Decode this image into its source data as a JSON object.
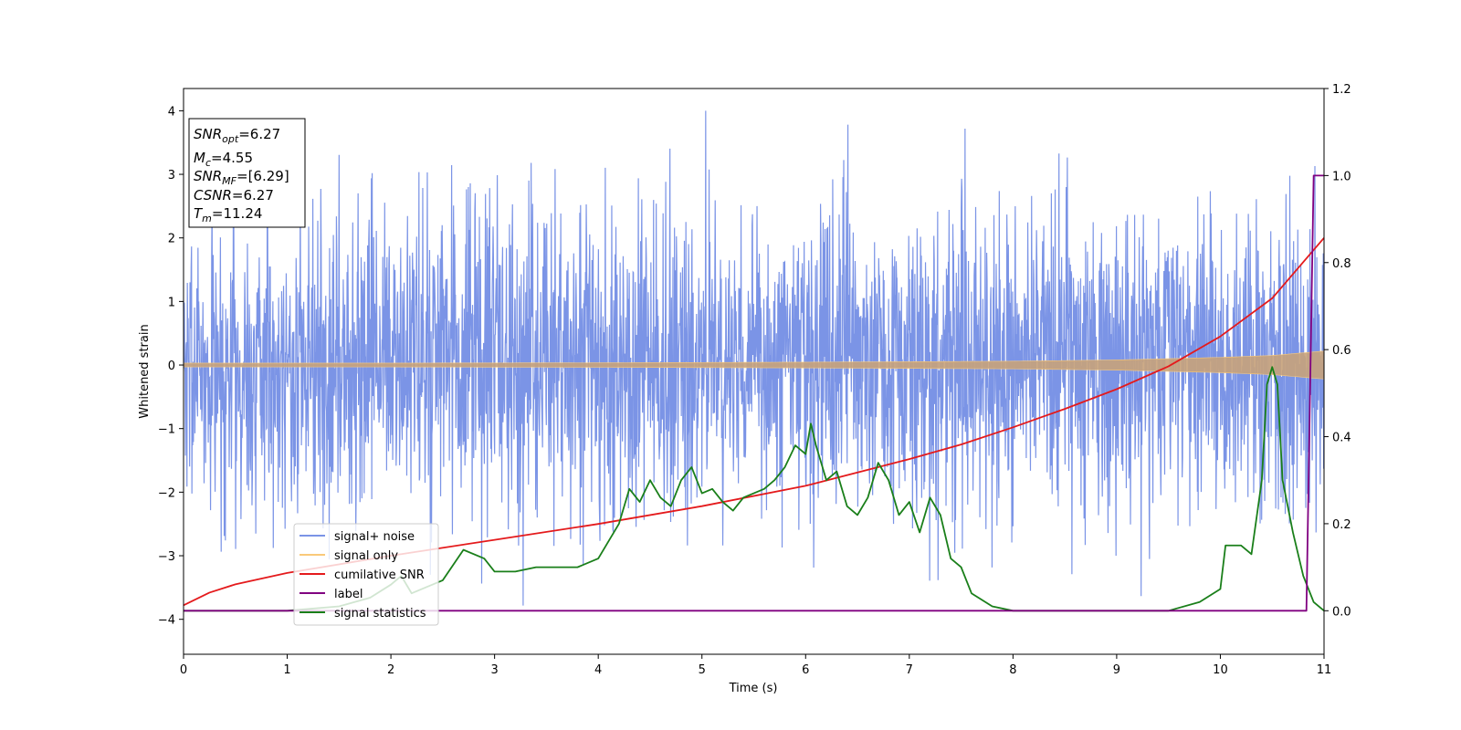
{
  "chart_data": {
    "type": "line",
    "xlabel": "Time (s)",
    "ylabel": "Whitened strain",
    "xlim": [
      0,
      11
    ],
    "ylim_left": [
      -4.55,
      4.35
    ],
    "ylim_right": [
      -0.1,
      1.2
    ],
    "x_ticks": [
      "0",
      "1",
      "2",
      "3",
      "4",
      "5",
      "6",
      "7",
      "8",
      "9",
      "10",
      "11"
    ],
    "y_left_ticks": [
      "4",
      "3",
      "2",
      "1",
      "0",
      "−1",
      "−2",
      "−3",
      "−4"
    ],
    "y_right_ticks": [
      "1.2",
      "1.0",
      "0.8",
      "0.6",
      "0.4",
      "0.2",
      "0.0"
    ],
    "annotation": {
      "lines": [
        {
          "main": "SNR",
          "sub": "opt",
          "rest": "=6.27"
        },
        {
          "main": "M",
          "sub": "c",
          "rest": "=4.55"
        },
        {
          "main": "SNR",
          "sub": "MF",
          "rest": "=[6.29]"
        },
        {
          "main": "CSNR",
          "sub": "",
          "rest": "=6.27"
        },
        {
          "main": "T",
          "sub": "m",
          "rest": "=11.24"
        }
      ]
    },
    "legend": {
      "placement": "lower-left",
      "entries": [
        {
          "label": "signal+ noise",
          "color": "#7b94e6"
        },
        {
          "label": "signal only",
          "color": "#f9c97a"
        },
        {
          "label": "cumilative SNR",
          "color": "#e41a1c"
        },
        {
          "label": "label",
          "color": "#800080"
        },
        {
          "label": "signal statistics",
          "color": "#1a7f1a"
        }
      ]
    },
    "series": [
      {
        "key": "noise",
        "axis": "left",
        "color": "#7b94e6",
        "approx_amplitude": 1.2,
        "note_range": [
          -3.9,
          4.0
        ]
      },
      {
        "key": "signal",
        "axis": "left",
        "color": "#f9c97a",
        "envelope": {
          "x": [
            0,
            2,
            4,
            6,
            8,
            9,
            10,
            10.5,
            11
          ],
          "amp": [
            0.03,
            0.03,
            0.035,
            0.045,
            0.06,
            0.08,
            0.12,
            0.15,
            0.22
          ]
        }
      },
      {
        "key": "csnr",
        "axis": "left",
        "color": "#e41a1c",
        "x": [
          0,
          0.25,
          0.5,
          1,
          2,
          3,
          4,
          5,
          6,
          7,
          7.5,
          8,
          8.5,
          9,
          9.5,
          10,
          10.5,
          11
        ],
        "y": [
          -3.78,
          -3.58,
          -3.45,
          -3.27,
          -3.0,
          -2.75,
          -2.5,
          -2.22,
          -1.9,
          -1.48,
          -1.25,
          -0.98,
          -0.69,
          -0.38,
          -0.02,
          0.45,
          1.05,
          2.0
        ]
      },
      {
        "key": "label",
        "axis": "right",
        "color": "#800080",
        "x": [
          0,
          10.83,
          10.9,
          11
        ],
        "y": [
          0,
          0,
          1.0,
          1.0
        ]
      },
      {
        "key": "stats",
        "axis": "right",
        "color": "#1a7f1a",
        "x": [
          0,
          1,
          1.5,
          1.8,
          2.0,
          2.1,
          2.2,
          2.3,
          2.5,
          2.7,
          2.9,
          3.0,
          3.2,
          3.4,
          3.6,
          3.8,
          4.0,
          4.2,
          4.3,
          4.4,
          4.5,
          4.6,
          4.7,
          4.8,
          4.9,
          5.0,
          5.1,
          5.2,
          5.3,
          5.4,
          5.5,
          5.6,
          5.7,
          5.8,
          5.9,
          6.0,
          6.05,
          6.1,
          6.2,
          6.3,
          6.4,
          6.5,
          6.6,
          6.7,
          6.8,
          6.9,
          7.0,
          7.1,
          7.2,
          7.3,
          7.4,
          7.5,
          7.6,
          7.8,
          8.0,
          8.5,
          9.0,
          9.5,
          9.8,
          10.0,
          10.05,
          10.2,
          10.3,
          10.4,
          10.45,
          10.5,
          10.55,
          10.6,
          10.7,
          10.8,
          10.9,
          11.0
        ],
        "y": [
          0.0,
          0.0,
          0.01,
          0.03,
          0.06,
          0.08,
          0.04,
          0.05,
          0.07,
          0.14,
          0.12,
          0.09,
          0.09,
          0.1,
          0.1,
          0.1,
          0.12,
          0.2,
          0.28,
          0.25,
          0.3,
          0.26,
          0.24,
          0.3,
          0.33,
          0.27,
          0.28,
          0.25,
          0.23,
          0.26,
          0.27,
          0.28,
          0.3,
          0.33,
          0.38,
          0.36,
          0.43,
          0.38,
          0.3,
          0.32,
          0.24,
          0.22,
          0.26,
          0.34,
          0.3,
          0.22,
          0.25,
          0.18,
          0.26,
          0.22,
          0.12,
          0.1,
          0.04,
          0.01,
          0.0,
          0.0,
          0.0,
          0.0,
          0.02,
          0.05,
          0.15,
          0.15,
          0.13,
          0.3,
          0.52,
          0.56,
          0.52,
          0.3,
          0.18,
          0.08,
          0.02,
          0.0
        ]
      }
    ]
  }
}
